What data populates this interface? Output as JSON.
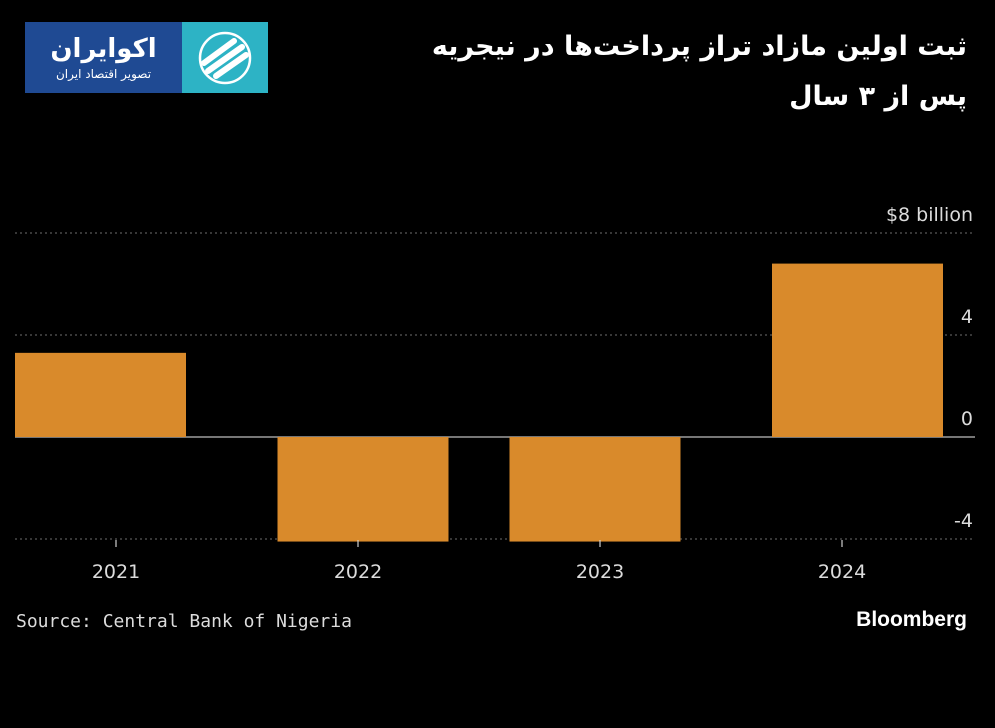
{
  "logo": {
    "name": "اکوایران",
    "tagline": "تصویر اقتصاد ایران",
    "icon": "stripes-logo-icon",
    "colors": {
      "text_panel": "#1f4a93",
      "mark_panel": "#2db3c5"
    }
  },
  "title_lines": [
    "ثبت اولین مازاد تراز پرداخت‌ها در نیجریه",
    "پس از ۳ سال"
  ],
  "source": "Source: Central Bank of Nigeria",
  "brand": "Bloomberg",
  "chart_data": {
    "type": "bar",
    "categories": [
      "2021",
      "2022",
      "2023",
      "2024"
    ],
    "values": [
      3.3,
      -4.1,
      -4.1,
      6.8
    ],
    "ylim": [
      -5,
      8.6
    ],
    "yticks": [
      8,
      4,
      0,
      -4
    ],
    "ytick_labels": [
      "$8 billion",
      "4",
      "0",
      "-4"
    ],
    "grid": true,
    "legend": "none",
    "bar_color": "#d98a2b"
  }
}
